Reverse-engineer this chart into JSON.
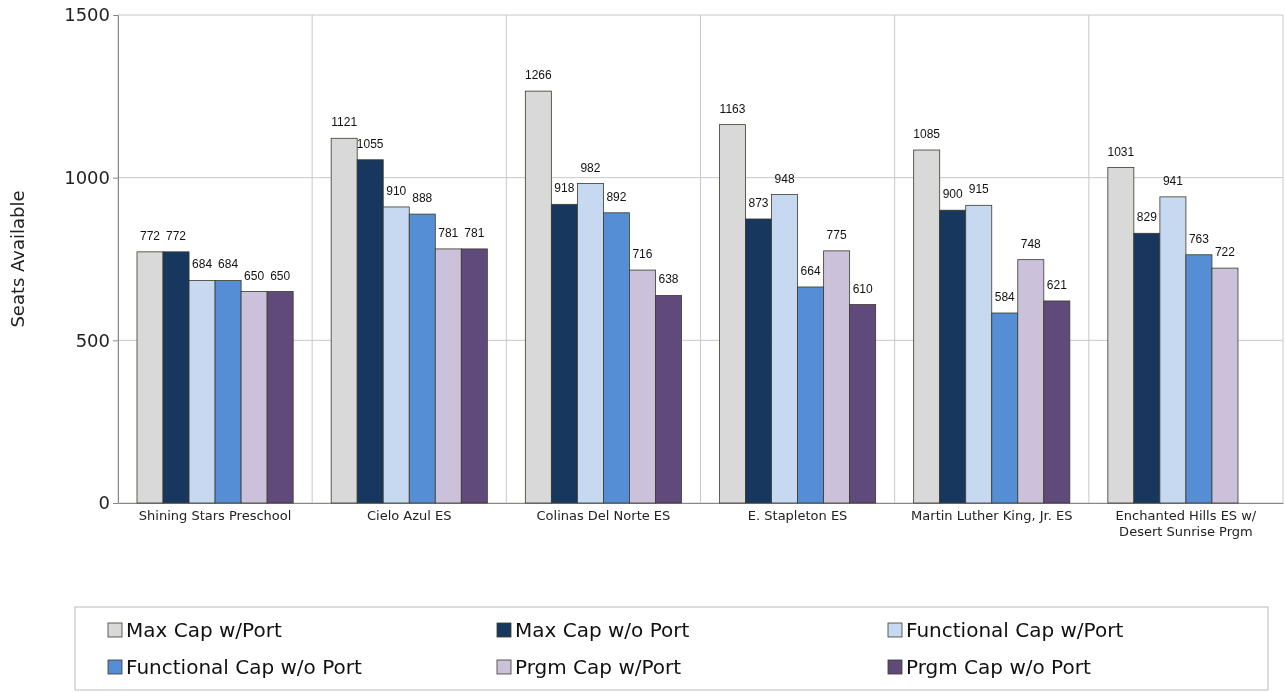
{
  "chart_data": {
    "type": "bar",
    "ylabel": "Seats Available",
    "categories": [
      "Shining Stars Preschool",
      "Cielo Azul ES",
      "Colinas Del Norte ES",
      "E. Stapleton ES",
      "Martin Luther King, Jr. ES",
      "Enchanted Hills ES w/ Desert Sunrise Prgm"
    ],
    "series": [
      {
        "name": "Max Cap w/Port",
        "color": "#d9d9d9",
        "values": [
          772,
          1121,
          1266,
          1163,
          1085,
          1031
        ]
      },
      {
        "name": "Max Cap w/o Port",
        "color": "#17375e",
        "values": [
          772,
          1055,
          918,
          873,
          900,
          829
        ]
      },
      {
        "name": "Functional Cap w/Port",
        "color": "#c6d9f1",
        "values": [
          684,
          910,
          982,
          948,
          915,
          941
        ]
      },
      {
        "name": "Functional Cap w/o Port",
        "color": "#558ed5",
        "values": [
          684,
          888,
          892,
          664,
          584,
          763
        ]
      },
      {
        "name": "Prgm Cap w/Port",
        "color": "#ccc1da",
        "values": [
          650,
          781,
          716,
          775,
          748,
          722
        ]
      },
      {
        "name": "Prgm Cap w/o Port",
        "color": "#604a7b",
        "values": [
          650,
          781,
          638,
          610,
          621,
          null
        ]
      }
    ],
    "ylim": [
      0,
      1500
    ],
    "yticks": [
      0,
      500,
      1000,
      1500
    ],
    "grid": true,
    "data_labels": true,
    "legend": "bottom"
  }
}
